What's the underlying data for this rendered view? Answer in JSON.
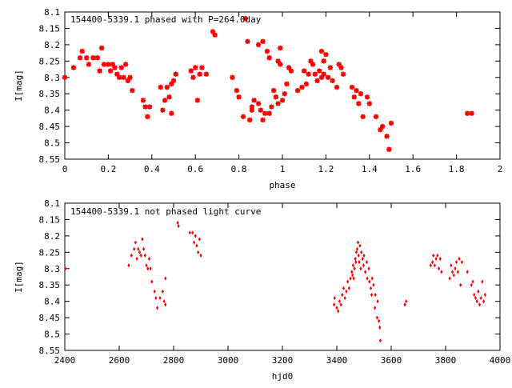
{
  "chart_data": [
    {
      "type": "scatter",
      "title": "154400-5339.1 phased with P=264.0day",
      "xlabel": "phase",
      "ylabel": "I[mag]",
      "xlim": [
        0,
        2
      ],
      "ylim": [
        8.55,
        8.1
      ],
      "y_inverted": true,
      "x_ticks": [
        "0",
        "0.2",
        "0.4",
        "0.6",
        "0.8",
        "1",
        "1.2",
        "1.4",
        "1.6",
        "1.8",
        "2"
      ],
      "y_ticks": [
        "8.1",
        "8.15",
        "8.2",
        "8.25",
        "8.3",
        "8.35",
        "8.4",
        "8.45",
        "8.5",
        "8.55"
      ],
      "marker_color": "#ff0000",
      "marker": "asterisk",
      "points": [
        [
          0.0,
          8.3
        ],
        [
          0.04,
          8.27
        ],
        [
          0.07,
          8.24
        ],
        [
          0.08,
          8.22
        ],
        [
          0.1,
          8.24
        ],
        [
          0.11,
          8.26
        ],
        [
          0.13,
          8.24
        ],
        [
          0.15,
          8.24
        ],
        [
          0.16,
          8.28
        ],
        [
          0.17,
          8.21
        ],
        [
          0.18,
          8.26
        ],
        [
          0.2,
          8.26
        ],
        [
          0.21,
          8.28
        ],
        [
          0.22,
          8.26
        ],
        [
          0.23,
          8.27
        ],
        [
          0.24,
          8.29
        ],
        [
          0.25,
          8.3
        ],
        [
          0.26,
          8.27
        ],
        [
          0.27,
          8.3
        ],
        [
          0.28,
          8.26
        ],
        [
          0.29,
          8.31
        ],
        [
          0.3,
          8.3
        ],
        [
          0.31,
          8.34
        ],
        [
          0.36,
          8.37
        ],
        [
          0.37,
          8.39
        ],
        [
          0.38,
          8.42
        ],
        [
          0.39,
          8.39
        ],
        [
          0.44,
          8.33
        ],
        [
          0.45,
          8.4
        ],
        [
          0.46,
          8.37
        ],
        [
          0.47,
          8.33
        ],
        [
          0.48,
          8.36
        ],
        [
          0.49,
          8.41
        ],
        [
          0.49,
          8.32
        ],
        [
          0.5,
          8.31
        ],
        [
          0.51,
          8.29
        ],
        [
          0.58,
          8.28
        ],
        [
          0.59,
          8.3
        ],
        [
          0.6,
          8.27
        ],
        [
          0.61,
          8.37
        ],
        [
          0.62,
          8.29
        ],
        [
          0.63,
          8.27
        ],
        [
          0.65,
          8.29
        ],
        [
          0.68,
          8.16
        ],
        [
          0.69,
          8.17
        ],
        [
          0.77,
          8.3
        ],
        [
          0.79,
          8.34
        ],
        [
          0.8,
          8.36
        ],
        [
          0.82,
          8.42
        ],
        [
          0.83,
          8.12
        ],
        [
          0.84,
          8.19
        ],
        [
          0.85,
          8.43
        ],
        [
          0.86,
          8.4
        ],
        [
          0.86,
          8.39
        ],
        [
          0.87,
          8.37
        ],
        [
          0.89,
          8.2
        ],
        [
          0.89,
          8.38
        ],
        [
          0.9,
          8.4
        ],
        [
          0.91,
          8.43
        ],
        [
          0.91,
          8.19
        ],
        [
          0.92,
          8.41
        ],
        [
          0.93,
          8.22
        ],
        [
          0.94,
          8.41
        ],
        [
          0.94,
          8.24
        ],
        [
          0.95,
          8.39
        ],
        [
          0.96,
          8.34
        ],
        [
          0.97,
          8.36
        ],
        [
          0.98,
          8.25
        ],
        [
          0.98,
          8.38
        ],
        [
          0.99,
          8.26
        ],
        [
          0.99,
          8.21
        ],
        [
          1.0,
          8.37
        ],
        [
          1.01,
          8.35
        ],
        [
          1.02,
          8.32
        ],
        [
          1.03,
          8.27
        ],
        [
          1.04,
          8.28
        ],
        [
          1.07,
          8.34
        ],
        [
          1.09,
          8.33
        ],
        [
          1.1,
          8.28
        ],
        [
          1.11,
          8.32
        ],
        [
          1.12,
          8.29
        ],
        [
          1.13,
          8.25
        ],
        [
          1.14,
          8.26
        ],
        [
          1.15,
          8.29
        ],
        [
          1.16,
          8.31
        ],
        [
          1.17,
          8.28
        ],
        [
          1.18,
          8.3
        ],
        [
          1.18,
          8.22
        ],
        [
          1.19,
          8.29
        ],
        [
          1.19,
          8.25
        ],
        [
          1.2,
          8.23
        ],
        [
          1.21,
          8.3
        ],
        [
          1.22,
          8.27
        ],
        [
          1.23,
          8.31
        ],
        [
          1.25,
          8.33
        ],
        [
          1.26,
          8.26
        ],
        [
          1.27,
          8.27
        ],
        [
          1.28,
          8.29
        ],
        [
          1.32,
          8.33
        ],
        [
          1.33,
          8.36
        ],
        [
          1.34,
          8.34
        ],
        [
          1.35,
          8.38
        ],
        [
          1.36,
          8.35
        ],
        [
          1.37,
          8.42
        ],
        [
          1.39,
          8.36
        ],
        [
          1.4,
          8.38
        ],
        [
          1.43,
          8.42
        ],
        [
          1.45,
          8.46
        ],
        [
          1.46,
          8.45
        ],
        [
          1.48,
          8.48
        ],
        [
          1.49,
          8.52
        ],
        [
          1.5,
          8.44
        ],
        [
          1.85,
          8.41
        ],
        [
          1.87,
          8.41
        ]
      ]
    },
    {
      "type": "scatter",
      "title": "154400-5339.1 not phased light curve",
      "xlabel": "hjd0",
      "ylabel": "I[mag]",
      "xlim": [
        2400,
        4000
      ],
      "ylim": [
        8.55,
        8.1
      ],
      "y_inverted": true,
      "x_ticks": [
        "2400",
        "2600",
        "2800",
        "3000",
        "3200",
        "3400",
        "3600",
        "3800",
        "4000"
      ],
      "y_ticks": [
        "8.1",
        "8.15",
        "8.2",
        "8.25",
        "8.3",
        "8.35",
        "8.4",
        "8.45",
        "8.5",
        "8.55"
      ],
      "marker_color": "#ff0000",
      "marker": "diamond",
      "points": [
        [
          2402,
          8.3
        ],
        [
          2635,
          8.29
        ],
        [
          2645,
          8.26
        ],
        [
          2655,
          8.24
        ],
        [
          2660,
          8.22
        ],
        [
          2665,
          8.27
        ],
        [
          2670,
          8.24
        ],
        [
          2675,
          8.25
        ],
        [
          2680,
          8.26
        ],
        [
          2685,
          8.21
        ],
        [
          2690,
          8.24
        ],
        [
          2695,
          8.26
        ],
        [
          2700,
          8.29
        ],
        [
          2705,
          8.3
        ],
        [
          2710,
          8.27
        ],
        [
          2715,
          8.3
        ],
        [
          2720,
          8.34
        ],
        [
          2730,
          8.37
        ],
        [
          2735,
          8.39
        ],
        [
          2740,
          8.42
        ],
        [
          2750,
          8.39
        ],
        [
          2760,
          8.37
        ],
        [
          2765,
          8.4
        ],
        [
          2770,
          8.41
        ],
        [
          2770,
          8.33
        ],
        [
          2815,
          8.16
        ],
        [
          2818,
          8.17
        ],
        [
          2860,
          8.19
        ],
        [
          2870,
          8.19
        ],
        [
          2875,
          8.22
        ],
        [
          2880,
          8.2
        ],
        [
          2885,
          8.23
        ],
        [
          2890,
          8.25
        ],
        [
          2895,
          8.21
        ],
        [
          2900,
          8.26
        ],
        [
          3390,
          8.41
        ],
        [
          3392,
          8.39
        ],
        [
          3400,
          8.42
        ],
        [
          3405,
          8.43
        ],
        [
          3410,
          8.4
        ],
        [
          3415,
          8.41
        ],
        [
          3420,
          8.38
        ],
        [
          3425,
          8.36
        ],
        [
          3430,
          8.39
        ],
        [
          3435,
          8.37
        ],
        [
          3440,
          8.34
        ],
        [
          3445,
          8.36
        ],
        [
          3450,
          8.33
        ],
        [
          3455,
          8.31
        ],
        [
          3458,
          8.32
        ],
        [
          3460,
          8.29
        ],
        [
          3462,
          8.33
        ],
        [
          3465,
          8.3
        ],
        [
          3468,
          8.27
        ],
        [
          3470,
          8.28
        ],
        [
          3472,
          8.25
        ],
        [
          3475,
          8.24
        ],
        [
          3478,
          8.22
        ],
        [
          3480,
          8.26
        ],
        [
          3482,
          8.28
        ],
        [
          3485,
          8.23
        ],
        [
          3488,
          8.3
        ],
        [
          3490,
          8.25
        ],
        [
          3495,
          8.27
        ],
        [
          3498,
          8.29
        ],
        [
          3500,
          8.26
        ],
        [
          3505,
          8.31
        ],
        [
          3510,
          8.28
        ],
        [
          3512,
          8.33
        ],
        [
          3518,
          8.3
        ],
        [
          3520,
          8.34
        ],
        [
          3525,
          8.36
        ],
        [
          3528,
          8.38
        ],
        [
          3530,
          8.33
        ],
        [
          3535,
          8.35
        ],
        [
          3540,
          8.42
        ],
        [
          3542,
          8.38
        ],
        [
          3548,
          8.45
        ],
        [
          3550,
          8.4
        ],
        [
          3555,
          8.46
        ],
        [
          3558,
          8.48
        ],
        [
          3560,
          8.52
        ],
        [
          3650,
          8.41
        ],
        [
          3655,
          8.4
        ],
        [
          3745,
          8.29
        ],
        [
          3752,
          8.28
        ],
        [
          3755,
          8.26
        ],
        [
          3760,
          8.29
        ],
        [
          3765,
          8.27
        ],
        [
          3770,
          8.26
        ],
        [
          3775,
          8.3
        ],
        [
          3780,
          8.27
        ],
        [
          3785,
          8.31
        ],
        [
          3815,
          8.33
        ],
        [
          3820,
          8.29
        ],
        [
          3825,
          8.31
        ],
        [
          3830,
          8.32
        ],
        [
          3835,
          8.3
        ],
        [
          3840,
          8.28
        ],
        [
          3845,
          8.31
        ],
        [
          3850,
          8.27
        ],
        [
          3855,
          8.35
        ],
        [
          3860,
          8.28
        ],
        [
          3880,
          8.31
        ],
        [
          3895,
          8.35
        ],
        [
          3900,
          8.34
        ],
        [
          3905,
          8.38
        ],
        [
          3910,
          8.39
        ],
        [
          3915,
          8.4
        ],
        [
          3920,
          8.37
        ],
        [
          3925,
          8.41
        ],
        [
          3930,
          8.39
        ],
        [
          3935,
          8.34
        ],
        [
          3940,
          8.4
        ],
        [
          3945,
          8.38
        ]
      ]
    }
  ]
}
